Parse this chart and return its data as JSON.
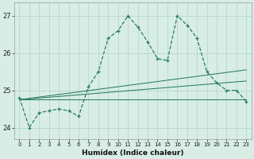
{
  "xlabel": "Humidex (Indice chaleur)",
  "x_values": [
    0,
    1,
    2,
    3,
    4,
    5,
    6,
    7,
    8,
    9,
    10,
    11,
    12,
    13,
    14,
    15,
    16,
    17,
    18,
    19,
    20,
    21,
    22,
    23
  ],
  "line1_y": [
    24.8,
    24.0,
    24.4,
    24.45,
    24.5,
    24.45,
    24.3,
    25.1,
    25.5,
    26.4,
    26.6,
    27.0,
    26.7,
    26.3,
    25.85,
    25.8,
    27.0,
    26.75,
    26.4,
    25.5,
    25.2,
    25.0,
    25.0,
    24.7
  ],
  "trend_lines": [
    {
      "x0": 0,
      "x1": 23,
      "y0": 24.75,
      "y1": 24.75
    },
    {
      "x0": 0,
      "x1": 23,
      "y0": 24.75,
      "y1": 25.25
    },
    {
      "x0": 0,
      "x1": 23,
      "y0": 24.75,
      "y1": 25.55
    }
  ],
  "ylim": [
    23.7,
    27.35
  ],
  "yticks": [
    24,
    25,
    26,
    27
  ],
  "xlim": [
    -0.5,
    23.5
  ],
  "line_color": "#2a7d62",
  "bg_color": "#d8ede6",
  "grid_color": "#afd4c6",
  "spine_color": "#999999"
}
